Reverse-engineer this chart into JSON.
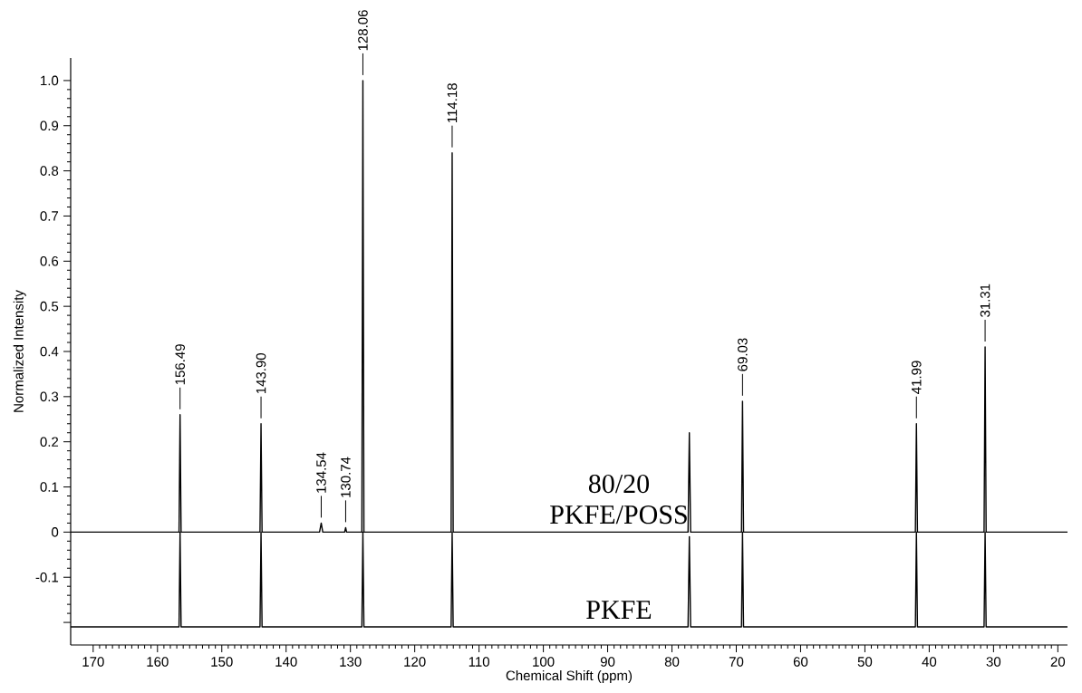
{
  "chart_data": {
    "type": "line",
    "xlabel": "Chemical Shift (ppm)",
    "ylabel": "Normalized Intensity",
    "xlim": [
      173.5,
      18.5
    ],
    "ylim": [
      -0.25,
      1.05
    ],
    "xticks": [
      170,
      160,
      150,
      140,
      130,
      120,
      110,
      100,
      90,
      80,
      70,
      60,
      50,
      40,
      30,
      20
    ],
    "yticks": [
      {
        "value": -0.2,
        "label": null
      },
      -0.1,
      0,
      0.1,
      0.2,
      0.3,
      0.4,
      0.5,
      0.6,
      0.7,
      0.8,
      0.9,
      {
        "value": 1.0,
        "label": "1.0"
      }
    ],
    "series": [
      {
        "name": "80/20 PKFE/POSS",
        "color": "#000000",
        "x": [
          173.5,
          156.65,
          156.49,
          156.33,
          144.06,
          143.9,
          143.74,
          134.8,
          134.54,
          134.3,
          130.9,
          130.74,
          130.6,
          128.22,
          128.06,
          127.9,
          114.34,
          114.18,
          114.02,
          77.5,
          77.3,
          77.1,
          69.19,
          69.03,
          68.87,
          42.15,
          41.99,
          41.83,
          31.47,
          31.31,
          31.15,
          18.5
        ],
        "values": [
          0,
          0,
          0.26,
          0,
          0,
          0.24,
          0,
          0,
          0.02,
          0,
          0,
          0.01,
          0,
          0,
          1.0,
          0,
          0,
          0.84,
          0,
          0,
          0.22,
          0,
          0,
          0.29,
          0,
          0,
          0.24,
          0,
          0,
          0.41,
          0,
          0
        ]
      },
      {
        "name": "PKFE",
        "color": "#000000",
        "x": [
          173.5,
          156.65,
          156.49,
          156.33,
          144.06,
          143.9,
          143.74,
          128.22,
          128.06,
          127.9,
          114.34,
          114.18,
          114.02,
          77.5,
          77.3,
          77.1,
          69.19,
          69.03,
          68.87,
          42.15,
          41.99,
          41.83,
          31.47,
          31.31,
          31.15,
          18.5
        ],
        "values": [
          -0.21,
          -0.21,
          0,
          -0.21,
          -0.21,
          0,
          -0.21,
          -0.21,
          0,
          -0.21,
          -0.21,
          0,
          -0.21,
          -0.21,
          -0.01,
          -0.21,
          -0.21,
          0,
          -0.21,
          -0.21,
          0,
          -0.21,
          -0.21,
          0,
          -0.21,
          -0.21
        ]
      }
    ],
    "annotations": [
      {
        "text": "156.49",
        "x": 156.49,
        "y": 0.26
      },
      {
        "text": "143.90",
        "x": 143.9,
        "y": 0.24
      },
      {
        "text": "134.54",
        "x": 134.54,
        "y": 0.02
      },
      {
        "text": "130.74",
        "x": 130.74,
        "y": 0.01
      },
      {
        "text": "128.06",
        "x": 128.06,
        "y": 1.0
      },
      {
        "text": "114.18",
        "x": 114.18,
        "y": 0.84
      },
      {
        "text": "69.03",
        "x": 69.03,
        "y": 0.29
      },
      {
        "text": "41.99",
        "x": 41.99,
        "y": 0.24
      },
      {
        "text": "31.31",
        "x": 31.31,
        "y": 0.41
      }
    ]
  }
}
